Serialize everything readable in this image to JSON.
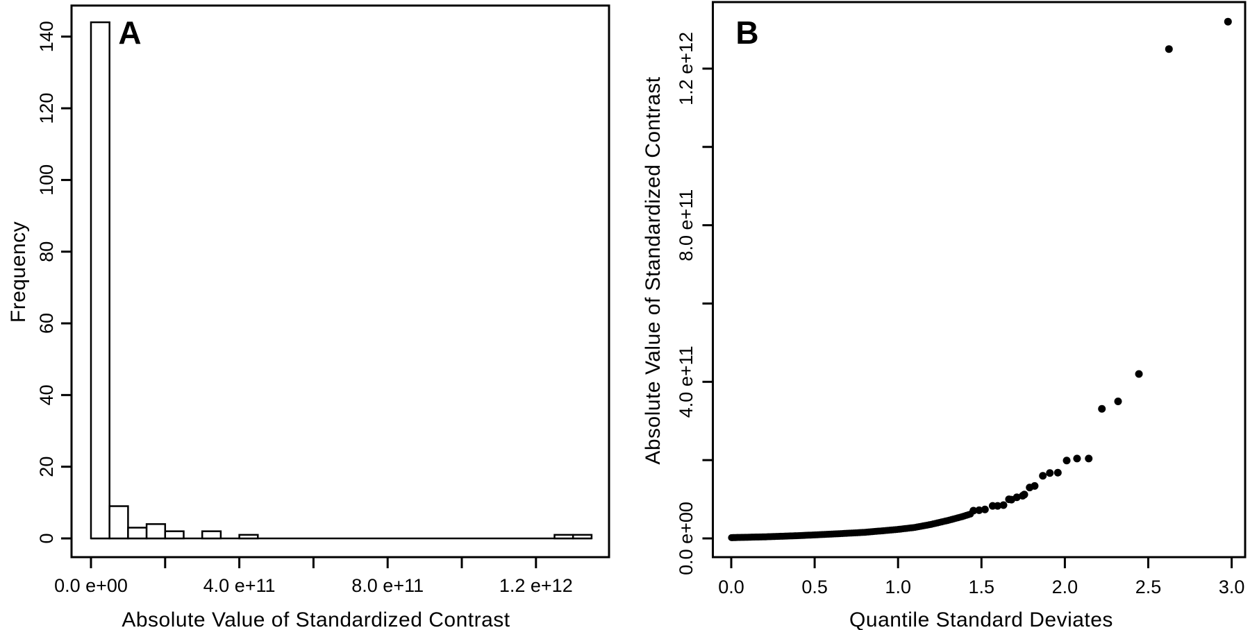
{
  "figure": {
    "background": "#ffffff",
    "ink_color": "#000000",
    "description": "Two-panel statistical figure, black on white"
  },
  "chart_data": [
    {
      "panel": "A",
      "type": "bar",
      "subtype": "histogram",
      "xlabel": "Absolute Value of Standardized Contrast",
      "ylabel": "Frequency",
      "bin_start": 0,
      "bin_width": 50000000000.0,
      "counts": [
        144,
        9,
        3,
        4,
        2,
        0,
        2,
        0,
        1,
        0,
        0,
        0,
        0,
        0,
        0,
        0,
        0,
        0,
        0,
        0,
        0,
        0,
        0,
        0,
        0,
        1,
        1
      ],
      "xlim": [
        0,
        1350000000000.0
      ],
      "ylim": [
        0,
        144
      ],
      "grid": false,
      "bar_fill": "#ffffff",
      "bar_stroke": "#000000",
      "x_ticks": [
        {
          "v": 0,
          "label": "0.0 e+00"
        },
        {
          "v": 200000000000.0,
          "label": ""
        },
        {
          "v": 400000000000.0,
          "label": "4.0 e+11"
        },
        {
          "v": 600000000000.0,
          "label": ""
        },
        {
          "v": 800000000000.0,
          "label": "8.0 e+11"
        },
        {
          "v": 1000000000000.0,
          "label": ""
        },
        {
          "v": 1200000000000.0,
          "label": "1.2 e+12"
        }
      ],
      "y_ticks": [
        {
          "v": 0,
          "label": "0"
        },
        {
          "v": 20,
          "label": "20"
        },
        {
          "v": 40,
          "label": "40"
        },
        {
          "v": 60,
          "label": "60"
        },
        {
          "v": 80,
          "label": "80"
        },
        {
          "v": 100,
          "label": "100"
        },
        {
          "v": 120,
          "label": "120"
        },
        {
          "v": 140,
          "label": "140"
        }
      ]
    },
    {
      "panel": "B",
      "type": "scatter",
      "xlabel": "Quantile Standard Deviates",
      "ylabel": "Absolute Value of Standardized Contrast",
      "xlim": [
        0,
        3.0
      ],
      "ylim": [
        0,
        1350000000000.0
      ],
      "grid": false,
      "marker": "filled-circle",
      "marker_color": "#000000",
      "x_ticks": [
        {
          "v": 0.0,
          "label": "0.0"
        },
        {
          "v": 0.5,
          "label": "0.5"
        },
        {
          "v": 1.0,
          "label": "1.0"
        },
        {
          "v": 1.5,
          "label": "1.5"
        },
        {
          "v": 2.0,
          "label": "2.0"
        },
        {
          "v": 2.5,
          "label": "2.5"
        },
        {
          "v": 3.0,
          "label": "3.0"
        }
      ],
      "y_ticks": [
        {
          "v": 0,
          "label": "0.0 e+00"
        },
        {
          "v": 200000000000.0,
          "label": ""
        },
        {
          "v": 400000000000.0,
          "label": "4.0 e+11"
        },
        {
          "v": 600000000000.0,
          "label": ""
        },
        {
          "v": 800000000000.0,
          "label": "8.0 e+11"
        },
        {
          "v": 1000000000000.0,
          "label": ""
        },
        {
          "v": 1200000000000.0,
          "label": "1.2 e+12"
        }
      ],
      "dense_band": {
        "description": "about 140 overlapping points forming a solid monotone band from x=0 to x=1.44",
        "count": 140,
        "x_max": 1.44,
        "x_power": 1.22,
        "y_anchors": [
          [
            0.0,
            2000000000.0
          ],
          [
            0.2,
            4000000000.0
          ],
          [
            0.4,
            7000000000.0
          ],
          [
            0.6,
            11000000000.0
          ],
          [
            0.8,
            15500000000.0
          ],
          [
            1.0,
            23000000000.0
          ],
          [
            1.1,
            28000000000.0
          ],
          [
            1.2,
            36000000000.0
          ],
          [
            1.3,
            46000000000.0
          ],
          [
            1.38,
            55000000000.0
          ],
          [
            1.44,
            63000000000.0
          ]
        ]
      },
      "points": [
        [
          1.452,
          71000000000.0
        ],
        [
          1.486,
          72000000000.0
        ],
        [
          1.521,
          74000000000.0
        ],
        [
          1.567,
          83000000000.0
        ],
        [
          1.597,
          83000000000.0
        ],
        [
          1.632,
          85000000000.0
        ],
        [
          1.665,
          100000000000.0
        ],
        [
          1.68,
          99000000000.0
        ],
        [
          1.712,
          105000000000.0
        ],
        [
          1.747,
          109000000000.0
        ],
        [
          1.757,
          112000000000.0
        ],
        [
          1.789,
          130000000000.0
        ],
        [
          1.819,
          134000000000.0
        ],
        [
          1.868,
          160000000000.0
        ],
        [
          1.91,
          167000000000.0
        ],
        [
          1.958,
          168000000000.0
        ],
        [
          2.011,
          199000000000.0
        ],
        [
          2.073,
          204000000000.0
        ],
        [
          2.143,
          204000000000.0
        ],
        [
          2.222,
          331000000000.0
        ],
        [
          2.319,
          350000000000.0
        ],
        [
          2.444,
          420000000000.0
        ],
        [
          2.624,
          1250000000000.0
        ],
        [
          2.978,
          1320000000000.0
        ]
      ]
    }
  ]
}
